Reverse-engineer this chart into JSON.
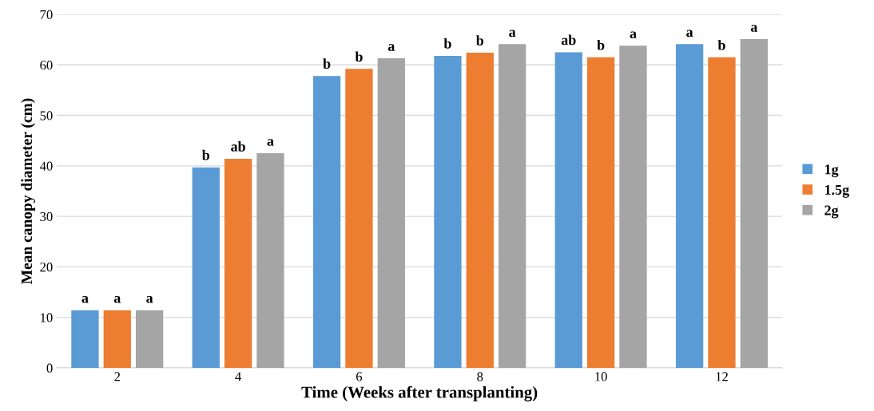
{
  "chart_data": {
    "type": "bar",
    "xlabel": "Time (Weeks after transplanting)",
    "ylabel": "Mean canopy diameter (cm)",
    "categories": [
      "2",
      "4",
      "6",
      "8",
      "10",
      "12"
    ],
    "series": [
      {
        "name": "1g",
        "color": "#5b9bd5",
        "values": [
          11.4,
          39.7,
          57.8,
          61.8,
          62.5,
          64.1
        ],
        "value_labels": [
          "a",
          "b",
          "b",
          "b",
          "ab",
          "a"
        ]
      },
      {
        "name": "1.5g",
        "color": "#ed7d31",
        "values": [
          11.4,
          41.4,
          59.2,
          62.4,
          61.5,
          61.5
        ],
        "value_labels": [
          "a",
          "ab",
          "b",
          "b",
          "b",
          "b"
        ]
      },
      {
        "name": "2g",
        "color": "#a5a5a5",
        "values": [
          11.4,
          42.5,
          61.3,
          64.1,
          63.8,
          65.1
        ],
        "value_labels": [
          "a",
          "a",
          "a",
          "a",
          "a",
          "a"
        ]
      }
    ],
    "ylim": [
      0,
      70
    ],
    "yticks": [
      0,
      10,
      20,
      30,
      40,
      50,
      60,
      70
    ],
    "grid": "y",
    "legend": "right"
  }
}
